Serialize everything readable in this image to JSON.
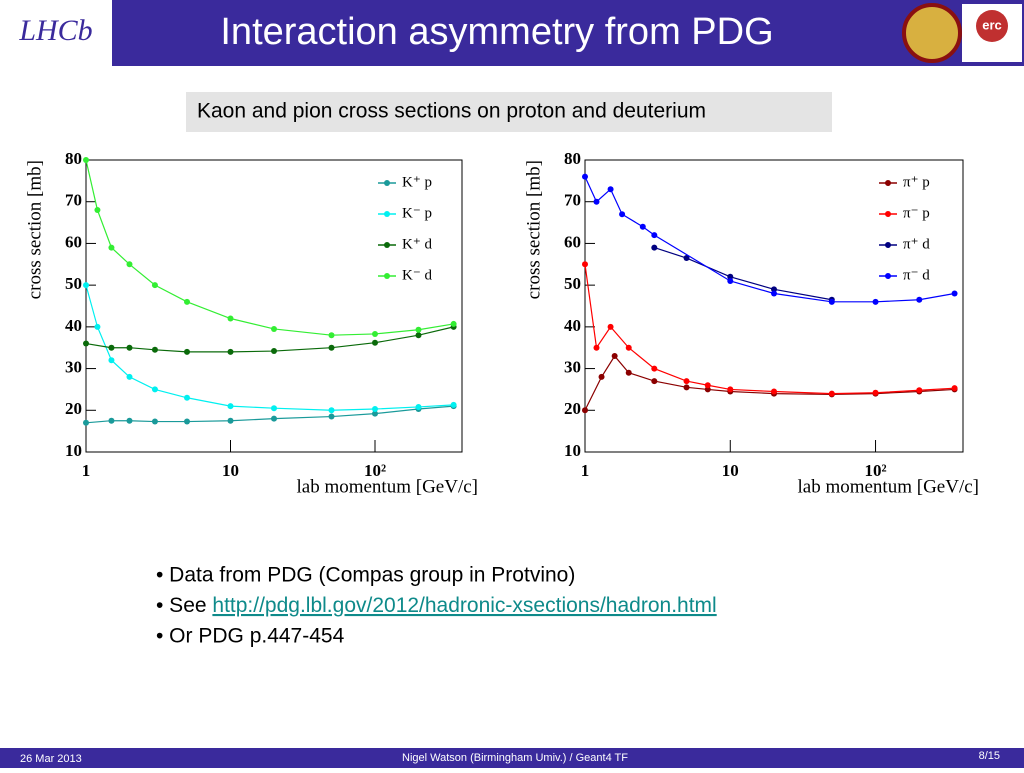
{
  "header": {
    "title": "Interaction asymmetry from PDG",
    "logos": [
      "LHCb",
      "erc"
    ]
  },
  "subtitle": "Kaon and pion cross sections on proton and deuterium",
  "chart_data": [
    {
      "type": "scatter",
      "xlabel": "lab momentum [GeV/c]",
      "ylabel": "cross section [mb]",
      "xscale": "log",
      "xlim": [
        1,
        400
      ],
      "xticks": [
        1,
        10,
        {
          "value": 100,
          "label": "10²"
        }
      ],
      "ylim": [
        10,
        80
      ],
      "yticks": [
        10,
        20,
        30,
        40,
        50,
        60,
        70,
        80
      ],
      "legend": "upper right",
      "series": [
        {
          "name": "K⁺ p",
          "color": "#1a9a9a",
          "x": [
            1,
            1.5,
            2,
            3,
            5,
            10,
            20,
            50,
            100,
            200,
            350
          ],
          "values": [
            17,
            17.5,
            17.5,
            17.3,
            17.3,
            17.5,
            18,
            18.5,
            19.2,
            20.3,
            21
          ]
        },
        {
          "name": "K⁻ p",
          "color": "#00f0f0",
          "x": [
            1,
            1.2,
            1.5,
            2,
            3,
            5,
            10,
            20,
            50,
            100,
            200,
            350
          ],
          "values": [
            50,
            40,
            32,
            28,
            25,
            23,
            21,
            20.5,
            20,
            20.3,
            20.8,
            21.3
          ]
        },
        {
          "name": "K⁺ d",
          "color": "#0a6a0a",
          "x": [
            1,
            1.5,
            2,
            3,
            5,
            10,
            20,
            50,
            100,
            200,
            350
          ],
          "values": [
            36,
            35,
            35,
            34.5,
            34,
            34,
            34.2,
            35,
            36.2,
            38,
            40
          ]
        },
        {
          "name": "K⁻ d",
          "color": "#33ee33",
          "x": [
            1,
            1.2,
            1.5,
            2,
            3,
            5,
            10,
            20,
            50,
            100,
            200,
            350
          ],
          "values": [
            80,
            68,
            59,
            55,
            50,
            46,
            42,
            39.5,
            38,
            38.3,
            39.3,
            40.7
          ]
        }
      ]
    },
    {
      "type": "scatter",
      "xlabel": "lab momentum [GeV/c]",
      "ylabel": "cross section [mb]",
      "xscale": "log",
      "xlim": [
        1,
        400
      ],
      "xticks": [
        1,
        10,
        {
          "value": 100,
          "label": "10²"
        }
      ],
      "ylim": [
        10,
        80
      ],
      "yticks": [
        10,
        20,
        30,
        40,
        50,
        60,
        70,
        80
      ],
      "legend": "upper right",
      "series": [
        {
          "name": "π⁺ p",
          "color": "#8b0000",
          "x": [
            1,
            1.3,
            1.6,
            2,
            3,
            5,
            7,
            10,
            20,
            50,
            100,
            200,
            350
          ],
          "values": [
            20,
            28,
            33,
            29,
            27,
            25.5,
            25,
            24.5,
            24,
            23.8,
            24,
            24.5,
            25
          ]
        },
        {
          "name": "π⁻ p",
          "color": "#ff0000",
          "x": [
            1,
            1.2,
            1.5,
            2,
            3,
            5,
            7,
            10,
            20,
            50,
            100,
            200,
            350
          ],
          "values": [
            55,
            35,
            40,
            35,
            30,
            27,
            26,
            25,
            24.5,
            24,
            24.2,
            24.8,
            25.3
          ]
        },
        {
          "name": "π⁺ d",
          "color": "#000080",
          "x": [
            3,
            5,
            10,
            20,
            50
          ],
          "values": [
            59,
            56.5,
            52,
            49,
            46.5
          ]
        },
        {
          "name": "π⁻ d",
          "color": "#0000ff",
          "x": [
            1,
            1.2,
            1.5,
            1.8,
            2.5,
            3,
            10,
            20,
            50,
            100,
            200,
            350
          ],
          "values": [
            76,
            70,
            73,
            67,
            64,
            62,
            51,
            48,
            46,
            46,
            46.5,
            48
          ]
        }
      ]
    }
  ],
  "bullets": [
    {
      "text": "• Data from PDG (Compas group in Protvino)"
    },
    {
      "text": "• See ",
      "link": "http://pdg.lbl.gov/2012/hadronic-xsections/hadron.html"
    },
    {
      "text": "• Or PDG p.447-454"
    }
  ],
  "footer": {
    "date": "26 Mar 2013",
    "author": "Nigel Watson (Birmingham Umiv.)  / Geant4 TF",
    "page": "8/15"
  }
}
